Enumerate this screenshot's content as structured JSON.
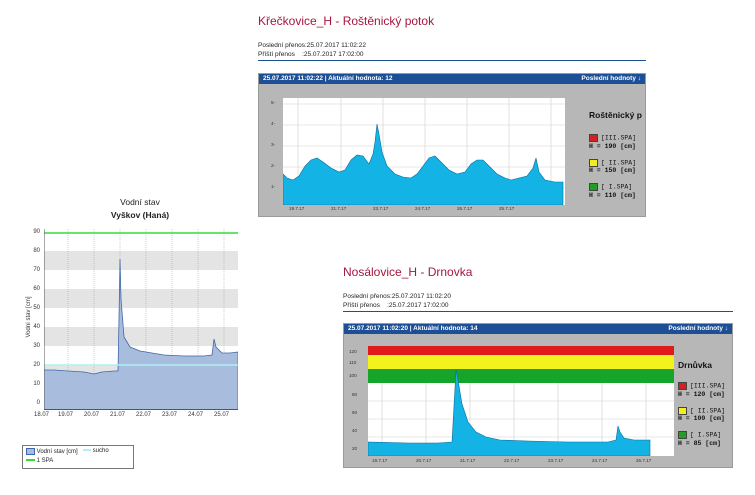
{
  "station1": {
    "title": "Křečkovice_H - Roštěnický potok",
    "last_label": "Poslední přenos:",
    "last_value": "25.07.2017 11:02:22",
    "next_label": "Příští přenos",
    "next_value": ":25.07.2017 17:02:00",
    "bar_left": "25.07.2017 11:02:22 | Aktuální hodnota: 12",
    "bar_right": "Poslední hodnoty ↓",
    "legend_name": "Roštěnický p",
    "thresholds": [
      {
        "label": "[III.SPA]",
        "value": "H = 190 [cm]",
        "color": "#d42020"
      },
      {
        "label": "[ II.SPA]",
        "value": "H = 150 [cm]",
        "color": "#f0f020"
      },
      {
        "label": "[ I.SPA]",
        "value": "H = 110 [cm]",
        "color": "#20a020"
      }
    ],
    "y_ticks": [
      "5-",
      "4-",
      "3-",
      "2-",
      "1-"
    ],
    "x_ticks": [
      "19.7.17",
      "21.7.17",
      "23.7.17",
      "24.7.17",
      "26.7.17",
      "25.7.17"
    ]
  },
  "station2": {
    "title": "Nosálovice_H - Drnovka",
    "last_label": "Poslední přenos:",
    "last_value": "25.07.2017 11:02:20",
    "next_label": "Příští přenos",
    "next_value": ":25.07.2017 17:02:00",
    "bar_left": "25.07.2017 11:02:20 | Aktuální hodnota: 14",
    "bar_right": "Poslední hodnoty ↓",
    "legend_name": "Drnůvka",
    "thresholds": [
      {
        "label": "[III.SPA]",
        "value": "H = 120 [cm]",
        "color": "#d42020"
      },
      {
        "label": "[ II.SPA]",
        "value": "H = 100 [cm]",
        "color": "#f0f020"
      },
      {
        "label": "[ I.SPA]",
        "value": "H = 85 [cm]",
        "color": "#20a020"
      }
    ],
    "y_ticks": [
      "120",
      "110",
      "100",
      "80",
      "60",
      "40",
      "20"
    ],
    "x_ticks": [
      "19.7.17",
      "20.7.17",
      "21.7.17",
      "22.7.17",
      "23.7.17",
      "24.7.17",
      "25.7.17"
    ]
  },
  "vyskov": {
    "title": "Vodní stav",
    "subtitle": "Vyškov (Haná)",
    "ylabel": "Vodní stav [cm]",
    "y_ticks": [
      "90",
      "80",
      "70",
      "60",
      "50",
      "40",
      "30",
      "20",
      "10",
      "0"
    ],
    "x_ticks": [
      "18.07",
      "19.07",
      "20.07",
      "21.07",
      "22.07",
      "23.07",
      "24.07",
      "25.07"
    ],
    "legend_series": "Vodní stav [cm]",
    "legend_dry": "sucho",
    "legend_spa": "1 SPA"
  }
}
